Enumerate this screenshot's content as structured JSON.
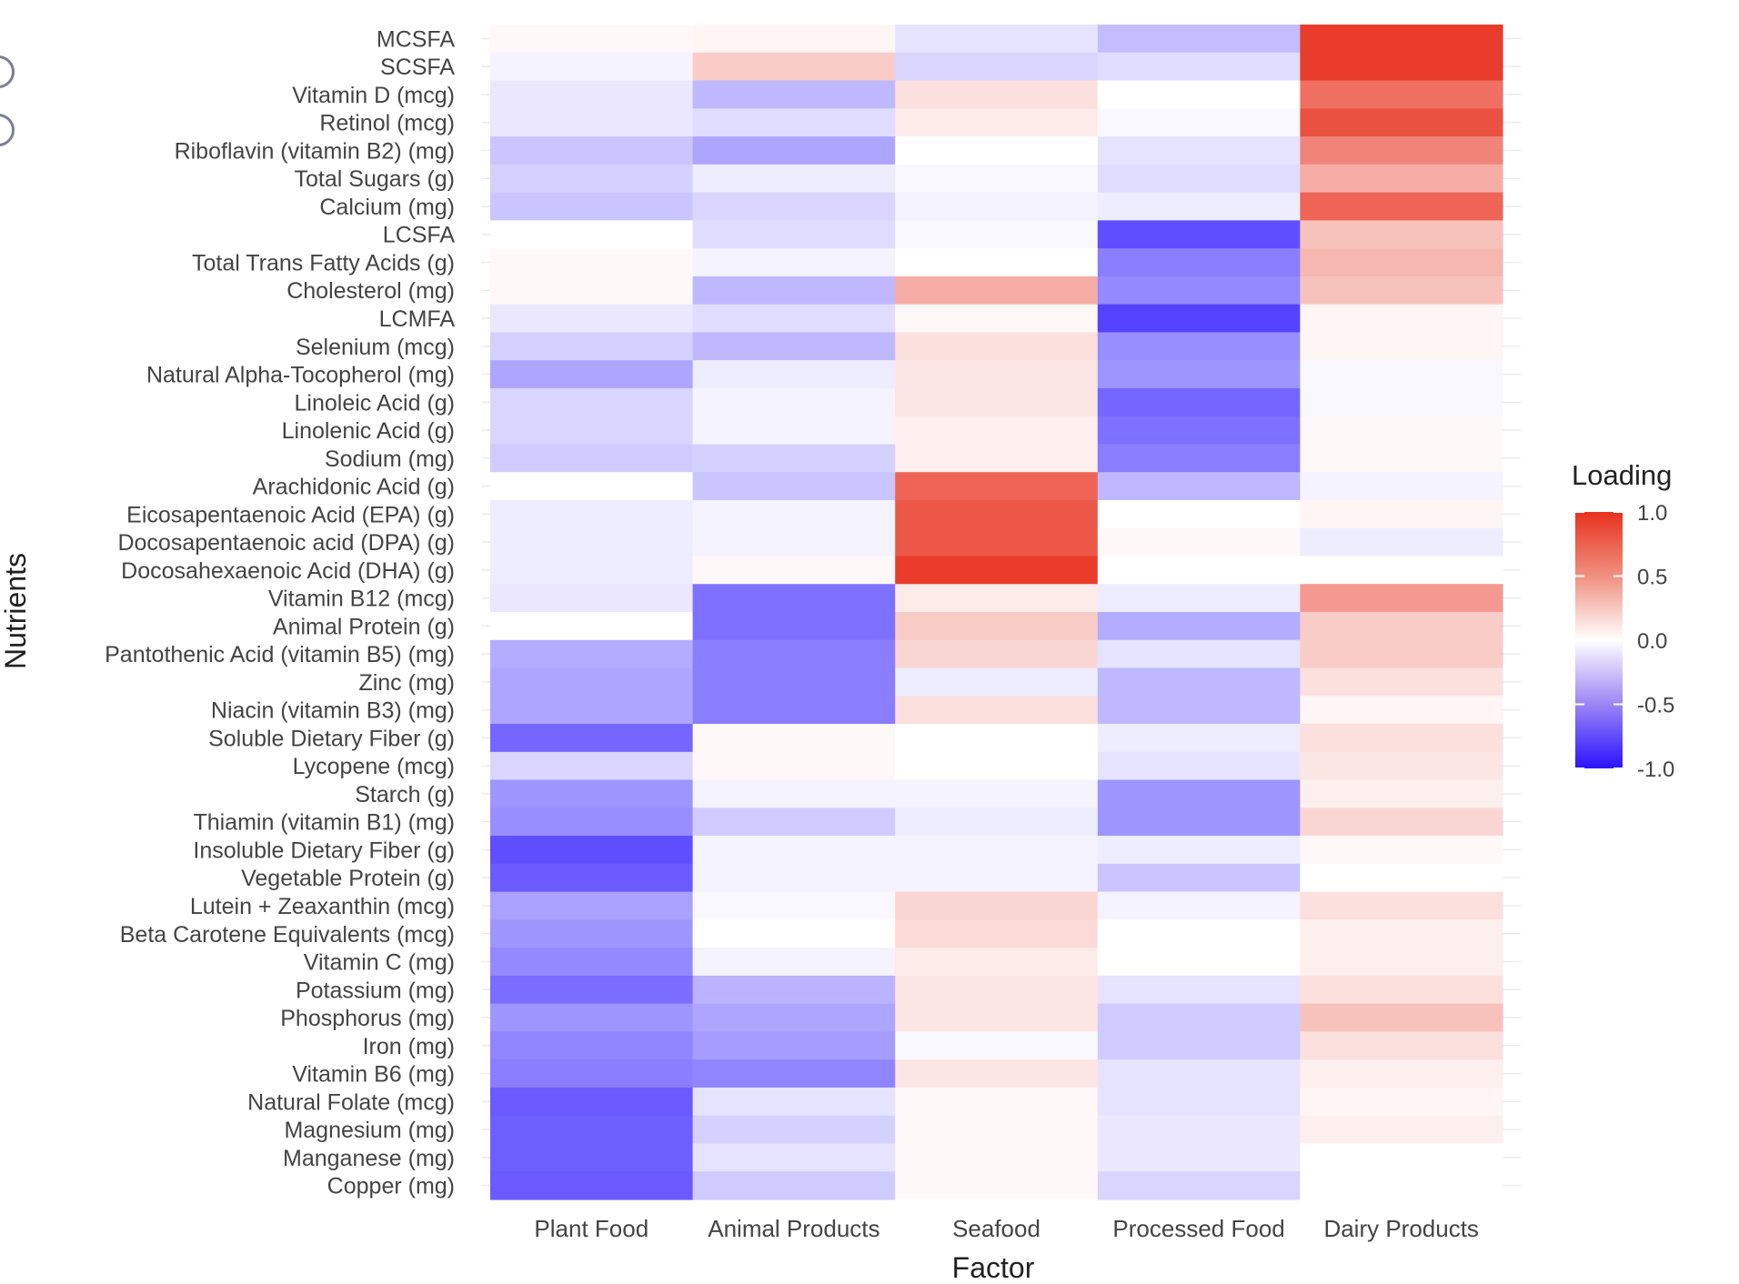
{
  "chart_data": {
    "type": "heatmap",
    "title": "",
    "xlabel": "Factor",
    "ylabel": "Nutrients",
    "x": [
      "Plant Food",
      "Animal Products",
      "Seafood",
      "Processed Food",
      "Dairy Products"
    ],
    "y": [
      "MCSFA",
      "SCSFA",
      "Vitamin D (mcg)",
      "Retinol (mcg)",
      "Riboflavin (vitamin B2) (mg)",
      "Total Sugars (g)",
      "Calcium (mg)",
      "LCSFA",
      "Total Trans Fatty Acids (g)",
      "Cholesterol (mg)",
      "LCMFA",
      "Selenium (mcg)",
      "Natural Alpha-Tocopherol (mg)",
      "Linoleic Acid (g)",
      "Linolenic Acid (g)",
      "Sodium (mg)",
      "Arachidonic Acid (g)",
      "Eicosapentaenoic Acid (EPA) (g)",
      "Docosapentaenoic acid (DPA) (g)",
      "Docosahexaenoic Acid (DHA) (g)",
      "Vitamin B12 (mcg)",
      "Animal Protein (g)",
      "Pantothenic Acid (vitamin B5) (mg)",
      "Zinc (mg)",
      "Niacin (vitamin B3) (mg)",
      "Soluble Dietary Fiber (g)",
      "Lycopene (mcg)",
      "Starch (g)",
      "Thiamin (vitamin B1) (mg)",
      "Insoluble Dietary Fiber (g)",
      "Vegetable Protein (g)",
      "Lutein + Zeaxanthin (mcg)",
      "Beta Carotene Equivalents  (mcg)",
      "Vitamin C (mg)",
      "Potassium (mg)",
      "Phosphorus (mg)",
      "Iron (mg)",
      "Vitamin B6 (mg)",
      "Natural Folate (mcg)",
      "Magnesium (mg)",
      "Manganese (mg)",
      "Copper (mg)"
    ],
    "values": [
      [
        0.03,
        0.05,
        -0.12,
        -0.28,
        0.95
      ],
      [
        -0.05,
        0.25,
        -0.18,
        -0.15,
        0.95
      ],
      [
        -0.1,
        -0.3,
        0.15,
        0.0,
        0.7
      ],
      [
        -0.1,
        -0.15,
        0.1,
        -0.03,
        0.85
      ],
      [
        -0.25,
        -0.38,
        0.0,
        -0.12,
        0.6
      ],
      [
        -0.2,
        -0.08,
        -0.03,
        -0.15,
        0.4
      ],
      [
        -0.25,
        -0.18,
        -0.05,
        -0.08,
        0.75
      ],
      [
        0.0,
        -0.15,
        -0.03,
        -0.75,
        0.3
      ],
      [
        0.03,
        -0.05,
        0.0,
        -0.55,
        0.35
      ],
      [
        0.03,
        -0.3,
        0.4,
        -0.5,
        0.3
      ],
      [
        -0.1,
        -0.15,
        0.03,
        -0.8,
        0.05
      ],
      [
        -0.2,
        -0.3,
        0.15,
        -0.48,
        0.05
      ],
      [
        -0.38,
        -0.08,
        0.12,
        -0.45,
        -0.03
      ],
      [
        -0.18,
        -0.05,
        0.12,
        -0.65,
        -0.03
      ],
      [
        -0.18,
        -0.05,
        0.08,
        -0.6,
        0.03
      ],
      [
        -0.22,
        -0.2,
        0.08,
        -0.55,
        0.03
      ],
      [
        0.0,
        -0.25,
        0.75,
        -0.3,
        -0.05
      ],
      [
        -0.08,
        -0.05,
        0.82,
        0.0,
        0.05
      ],
      [
        -0.08,
        -0.05,
        0.82,
        0.03,
        -0.08
      ],
      [
        -0.08,
        0.03,
        0.95,
        0.0,
        0.0
      ],
      [
        -0.1,
        -0.6,
        0.1,
        -0.08,
        0.5
      ],
      [
        0.0,
        -0.6,
        0.25,
        -0.35,
        0.25
      ],
      [
        -0.35,
        -0.55,
        0.2,
        -0.12,
        0.25
      ],
      [
        -0.38,
        -0.55,
        -0.08,
        -0.3,
        0.15
      ],
      [
        -0.38,
        -0.55,
        0.15,
        -0.3,
        0.05
      ],
      [
        -0.65,
        0.03,
        0.0,
        -0.08,
        0.15
      ],
      [
        -0.18,
        0.03,
        0.0,
        -0.12,
        0.12
      ],
      [
        -0.45,
        -0.05,
        -0.05,
        -0.45,
        0.08
      ],
      [
        -0.48,
        -0.22,
        -0.08,
        -0.45,
        0.2
      ],
      [
        -0.75,
        -0.05,
        -0.05,
        -0.08,
        0.03
      ],
      [
        -0.7,
        -0.05,
        -0.05,
        -0.25,
        0.0
      ],
      [
        -0.4,
        -0.03,
        0.2,
        -0.05,
        0.15
      ],
      [
        -0.45,
        0.0,
        0.18,
        0.0,
        0.08
      ],
      [
        -0.5,
        -0.05,
        0.1,
        0.0,
        0.08
      ],
      [
        -0.62,
        -0.32,
        0.12,
        -0.12,
        0.15
      ],
      [
        -0.45,
        -0.38,
        0.12,
        -0.22,
        0.3
      ],
      [
        -0.52,
        -0.42,
        -0.03,
        -0.22,
        0.15
      ],
      [
        -0.55,
        -0.52,
        0.12,
        -0.12,
        0.08
      ],
      [
        -0.7,
        -0.12,
        0.03,
        -0.12,
        0.05
      ],
      [
        -0.68,
        -0.2,
        0.03,
        -0.1,
        0.08
      ],
      [
        -0.68,
        -0.12,
        0.03,
        -0.1,
        0.0
      ],
      [
        -0.7,
        -0.22,
        0.03,
        -0.18,
        0.0
      ]
    ],
    "legend": {
      "title": "Loading",
      "placement": "right",
      "ticks": [
        "1.0",
        "0.5",
        "0.0",
        "-0.5",
        "-1.0"
      ],
      "tick_values": [
        1.0,
        0.5,
        0.0,
        -0.5,
        -1.0
      ]
    },
    "color_scale": {
      "low": "#2a13ff",
      "mid": "#ffffff",
      "high": "#e8321f",
      "range": [
        -1,
        1
      ]
    }
  }
}
